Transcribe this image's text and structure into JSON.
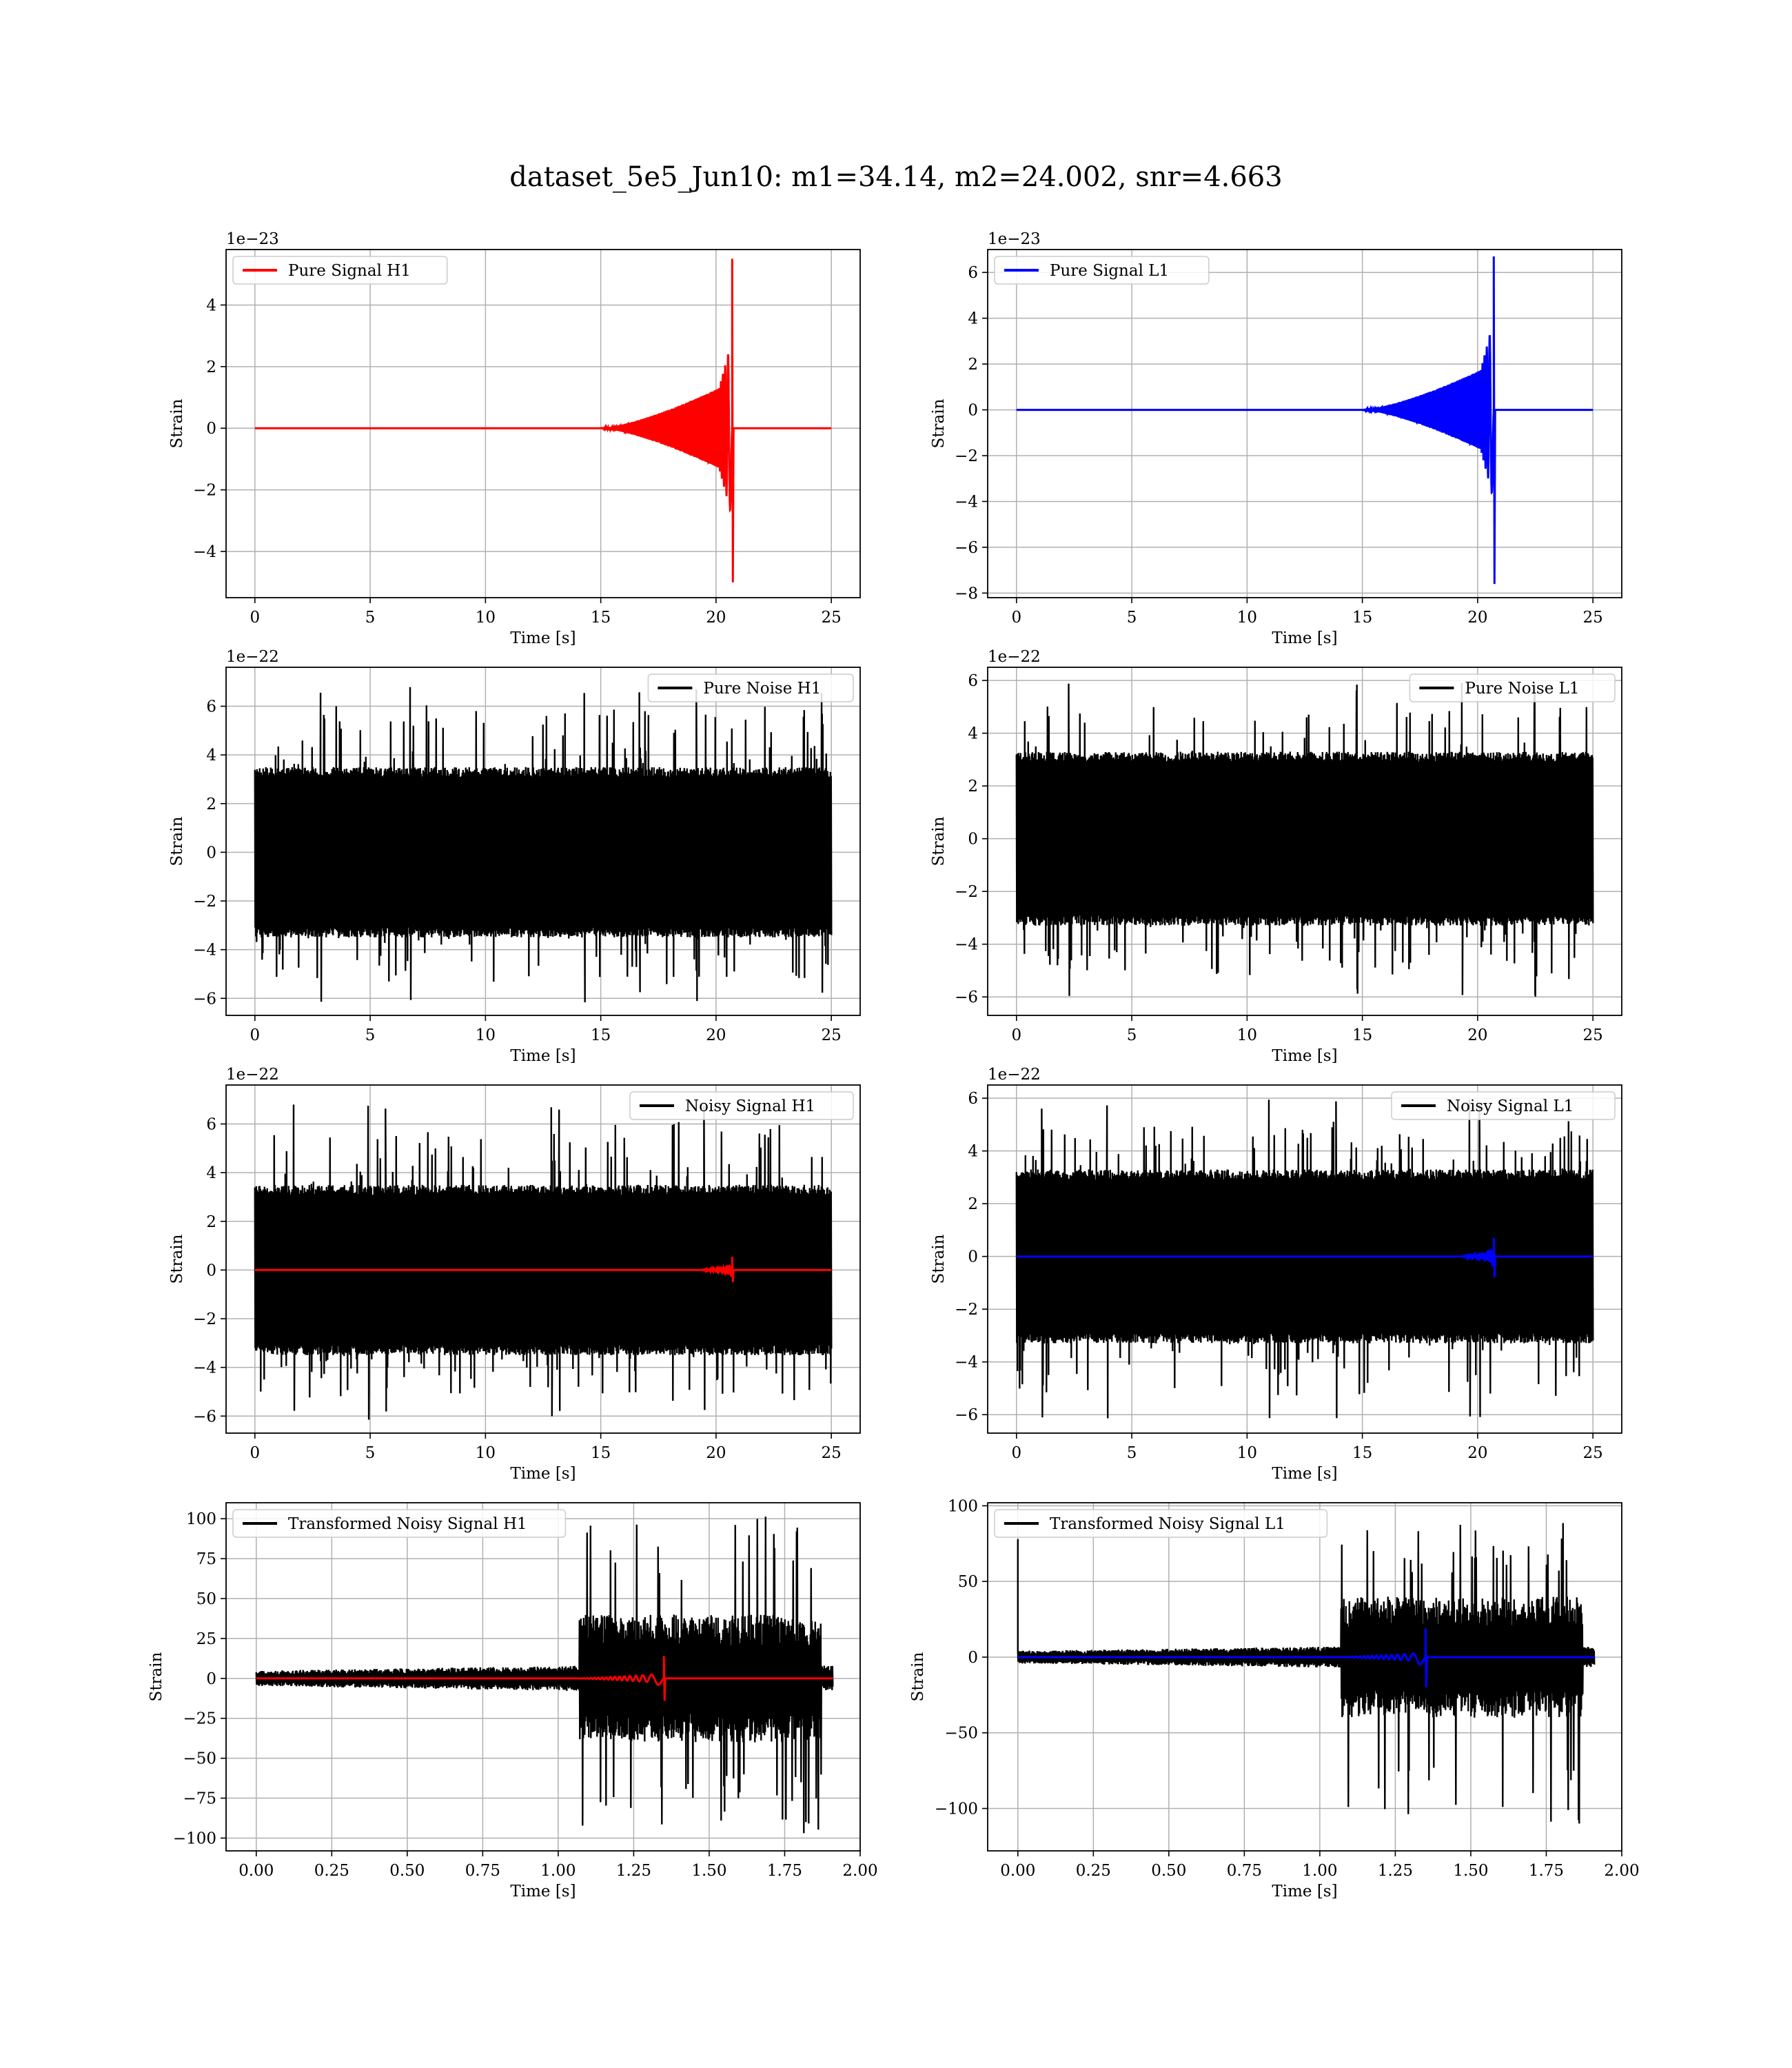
{
  "figure": {
    "title": "dataset_5e5_Jun10: m1=34.14, m2=24.002, snr=4.663"
  },
  "colors": {
    "h1_signal": "#ff0000",
    "l1_signal": "#0000ff",
    "noise": "#000000",
    "grid": "#b0b0b0"
  },
  "chart_data": [
    {
      "id": "pure-signal-h1",
      "type": "line",
      "xlabel": "Time [s]",
      "ylabel": "Strain",
      "offset_text": "1e−23",
      "xlim": [
        -1.25,
        26.25
      ],
      "ylim": [
        -5.5,
        5.8
      ],
      "xticks": [
        0,
        5,
        10,
        15,
        20,
        25
      ],
      "xticklabels": [
        "0",
        "5",
        "10",
        "15",
        "20",
        "25"
      ],
      "yticks": [
        -4,
        -2,
        0,
        2,
        4
      ],
      "yticklabels": [
        "−4",
        "−2",
        "0",
        "2",
        "4"
      ],
      "legend_position": "upper left",
      "grid": true,
      "series": [
        {
          "name": "Pure Signal H1",
          "color": "#ff0000",
          "kind": "chirp",
          "x_start": 0,
          "x_end": 25,
          "merger_x": 20.7,
          "onset_x": 15,
          "amp_mid": 1.5,
          "peak_pos": 5.5,
          "peak_neg": -5.0
        }
      ]
    },
    {
      "id": "pure-signal-l1",
      "type": "line",
      "xlabel": "Time [s]",
      "ylabel": "Strain",
      "offset_text": "1e−23",
      "xlim": [
        -1.25,
        26.25
      ],
      "ylim": [
        -8.2,
        7.0
      ],
      "xticks": [
        0,
        5,
        10,
        15,
        20,
        25
      ],
      "xticklabels": [
        "0",
        "5",
        "10",
        "15",
        "20",
        "25"
      ],
      "yticks": [
        -8,
        -6,
        -4,
        -2,
        0,
        2,
        4,
        6
      ],
      "yticklabels": [
        "−8",
        "−6",
        "−4",
        "−2",
        "0",
        "2",
        "4",
        "6"
      ],
      "legend_position": "upper left",
      "grid": true,
      "series": [
        {
          "name": "Pure Signal L1",
          "color": "#0000ff",
          "kind": "chirp",
          "x_start": 0,
          "x_end": 25,
          "merger_x": 20.7,
          "onset_x": 15,
          "amp_mid": 2.0,
          "peak_pos": 6.7,
          "peak_neg": -7.6
        }
      ]
    },
    {
      "id": "pure-noise-h1",
      "type": "line",
      "xlabel": "Time [s]",
      "ylabel": "Strain",
      "offset_text": "1e−22",
      "xlim": [
        -1.25,
        26.25
      ],
      "ylim": [
        -6.7,
        7.6
      ],
      "xticks": [
        0,
        5,
        10,
        15,
        20,
        25
      ],
      "xticklabels": [
        "0",
        "5",
        "10",
        "15",
        "20",
        "25"
      ],
      "yticks": [
        -6,
        -4,
        -2,
        0,
        2,
        4,
        6
      ],
      "yticklabels": [
        "−6",
        "−4",
        "−2",
        "0",
        "2",
        "4",
        "6"
      ],
      "legend_position": "upper right",
      "grid": true,
      "series": [
        {
          "name": "Pure Noise H1",
          "color": "#000000",
          "kind": "noise",
          "x_start": 0,
          "x_end": 25,
          "band": 3.5,
          "max": 7.1,
          "min": -6.2
        }
      ]
    },
    {
      "id": "pure-noise-l1",
      "type": "line",
      "xlabel": "Time [s]",
      "ylabel": "Strain",
      "offset_text": "1e−22",
      "xlim": [
        -1.25,
        26.25
      ],
      "ylim": [
        -6.7,
        6.5
      ],
      "xticks": [
        0,
        5,
        10,
        15,
        20,
        25
      ],
      "xticklabels": [
        "0",
        "5",
        "10",
        "15",
        "20",
        "25"
      ],
      "yticks": [
        -6,
        -4,
        -2,
        0,
        2,
        4,
        6
      ],
      "yticklabels": [
        "−6",
        "−4",
        "−2",
        "0",
        "2",
        "4",
        "6"
      ],
      "legend_position": "upper right",
      "grid": true,
      "series": [
        {
          "name": "Pure Noise L1",
          "color": "#000000",
          "kind": "noise",
          "x_start": 0,
          "x_end": 25,
          "band": 3.3,
          "max": 6.0,
          "min": -6.2
        }
      ]
    },
    {
      "id": "noisy-signal-h1",
      "type": "line",
      "xlabel": "Time [s]",
      "ylabel": "Strain",
      "offset_text": "1e−22",
      "xlim": [
        -1.25,
        26.25
      ],
      "ylim": [
        -6.7,
        7.6
      ],
      "xticks": [
        0,
        5,
        10,
        15,
        20,
        25
      ],
      "xticklabels": [
        "0",
        "5",
        "10",
        "15",
        "20",
        "25"
      ],
      "yticks": [
        -6,
        -4,
        -2,
        0,
        2,
        4,
        6
      ],
      "yticklabels": [
        "−6",
        "−4",
        "−2",
        "0",
        "2",
        "4",
        "6"
      ],
      "legend_position": "upper right",
      "grid": true,
      "series": [
        {
          "name": "Noisy Signal H1",
          "color": "#000000",
          "kind": "noise",
          "x_start": 0,
          "x_end": 25,
          "band": 3.5,
          "max": 7.1,
          "min": -6.2
        },
        {
          "name": "",
          "color": "#ff0000",
          "kind": "chirp",
          "x_start": 0,
          "x_end": 25,
          "merger_x": 20.7,
          "onset_x": 19.3,
          "amp_mid": 0.15,
          "peak_pos": 0.55,
          "peak_neg": -0.5
        }
      ]
    },
    {
      "id": "noisy-signal-l1",
      "type": "line",
      "xlabel": "Time [s]",
      "ylabel": "Strain",
      "offset_text": "1e−22",
      "xlim": [
        -1.25,
        26.25
      ],
      "ylim": [
        -6.7,
        6.5
      ],
      "xticks": [
        0,
        5,
        10,
        15,
        20,
        25
      ],
      "xticklabels": [
        "0",
        "5",
        "10",
        "15",
        "20",
        "25"
      ],
      "yticks": [
        -6,
        -4,
        -2,
        0,
        2,
        4,
        6
      ],
      "yticklabels": [
        "−6",
        "−4",
        "−2",
        "0",
        "2",
        "4",
        "6"
      ],
      "legend_position": "upper right",
      "grid": true,
      "series": [
        {
          "name": "Noisy Signal L1",
          "color": "#000000",
          "kind": "noise",
          "x_start": 0,
          "x_end": 25,
          "band": 3.3,
          "max": 6.0,
          "min": -6.2
        },
        {
          "name": "",
          "color": "#0000ff",
          "kind": "chirp",
          "x_start": 0,
          "x_end": 25,
          "merger_x": 20.7,
          "onset_x": 19.3,
          "amp_mid": 0.2,
          "peak_pos": 0.7,
          "peak_neg": -0.8
        }
      ]
    },
    {
      "id": "transformed-noisy-signal-h1",
      "type": "line",
      "xlabel": "Time [s]",
      "ylabel": "Strain",
      "offset_text": "",
      "xlim": [
        -0.1,
        2.0
      ],
      "ylim": [
        -108,
        110
      ],
      "xticks": [
        0,
        0.25,
        0.5,
        0.75,
        1.0,
        1.25,
        1.5,
        1.75,
        2.0
      ],
      "xticklabels": [
        "0.00",
        "0.25",
        "0.50",
        "0.75",
        "1.00",
        "1.25",
        "1.50",
        "1.75",
        "2.00"
      ],
      "yticks": [
        -100,
        -75,
        -50,
        -25,
        0,
        25,
        50,
        75,
        100
      ],
      "yticklabels": [
        "−100",
        "−75",
        "−50",
        "−25",
        "0",
        "25",
        "50",
        "75",
        "100"
      ],
      "legend_position": "upper left",
      "grid": true,
      "series": [
        {
          "name": "Transformed Noisy Signal H1",
          "color": "#000000",
          "kind": "whitened",
          "x_start": 0,
          "x_end": 1.91,
          "quiet_end": 1.07,
          "loud_end": 1.87,
          "quiet_amp": 8,
          "loud_amp": 40,
          "max": 102,
          "min": -98
        },
        {
          "name": "",
          "color": "#ff0000",
          "kind": "chirp",
          "x_start": 0,
          "x_end": 1.91,
          "merger_x": 1.35,
          "onset_x": 1.05,
          "amp_mid": 3,
          "peak_pos": 14,
          "peak_neg": -14,
          "cycles": 18
        }
      ]
    },
    {
      "id": "transformed-noisy-signal-l1",
      "type": "line",
      "xlabel": "Time [s]",
      "ylabel": "Strain",
      "offset_text": "",
      "xlim": [
        -0.1,
        2.0
      ],
      "ylim": [
        -128,
        102
      ],
      "xticks": [
        0,
        0.25,
        0.5,
        0.75,
        1.0,
        1.25,
        1.5,
        1.75,
        2.0
      ],
      "xticklabels": [
        "0.00",
        "0.25",
        "0.50",
        "0.75",
        "1.00",
        "1.25",
        "1.50",
        "1.75",
        "2.00"
      ],
      "yticks": [
        -100,
        -50,
        0,
        50,
        100
      ],
      "yticklabels": [
        "−100",
        "−50",
        "0",
        "50",
        "100"
      ],
      "legend_position": "upper left",
      "grid": true,
      "series": [
        {
          "name": "Transformed Noisy Signal L1",
          "color": "#000000",
          "kind": "whitened",
          "x_start": 0,
          "x_end": 1.91,
          "quiet_end": 1.07,
          "loud_end": 1.87,
          "quiet_amp": 7,
          "loud_amp": 40,
          "max": 93,
          "min": -118,
          "spike_start": 78
        },
        {
          "name": "",
          "color": "#0000ff",
          "kind": "chirp",
          "x_start": 0,
          "x_end": 1.91,
          "merger_x": 1.35,
          "onset_x": 1.05,
          "amp_mid": 3,
          "peak_pos": 19,
          "peak_neg": -20,
          "cycles": 18
        }
      ]
    }
  ]
}
